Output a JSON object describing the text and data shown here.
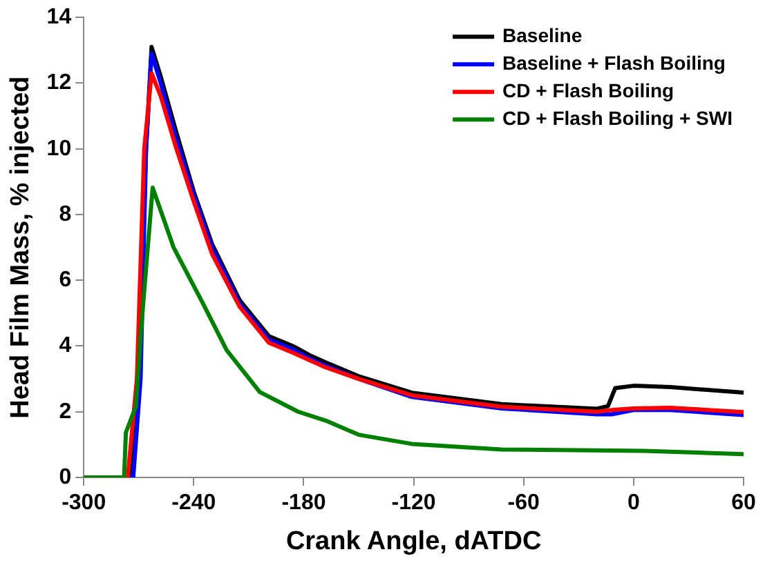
{
  "chart_data": {
    "type": "line",
    "xlabel": "Crank Angle, dATDC",
    "ylabel": "Head Film Mass, % injected",
    "xlim": [
      -300,
      60
    ],
    "xticks": [
      -300,
      -240,
      -180,
      -120,
      -60,
      0,
      60
    ],
    "ylim": [
      0,
      14
    ],
    "yticks": [
      0,
      2,
      4,
      6,
      8,
      10,
      12,
      14
    ],
    "grid": false,
    "legend": "top right",
    "marker": "none",
    "line_style": "solid",
    "series": [
      {
        "name": "Baseline",
        "color": "#000000",
        "x": [
          -300,
          -274,
          -270,
          -266,
          -263,
          -258,
          -250,
          -240,
          -230,
          -215,
          -199,
          -186,
          -176,
          -168,
          -150,
          -121,
          -72,
          -20,
          -14,
          -10,
          0,
          20,
          60
        ],
        "values": [
          0,
          0,
          3,
          10,
          13.1,
          12.2,
          10.6,
          8.7,
          7.1,
          5.4,
          4.3,
          4.0,
          3.7,
          3.5,
          3.08,
          2.58,
          2.23,
          2.09,
          2.17,
          2.72,
          2.79,
          2.75,
          2.58
        ]
      },
      {
        "name": "Baseline + Flash Boiling",
        "color": "#0000ff",
        "x": [
          -300,
          -273,
          -269,
          -266,
          -263,
          -258,
          -250,
          -240,
          -230,
          -215,
          -199,
          -186,
          -176,
          -168,
          -150,
          -121,
          -72,
          -20,
          -12,
          0,
          20,
          60
        ],
        "values": [
          0,
          0,
          3,
          10,
          12.9,
          12.0,
          10.4,
          8.6,
          7.0,
          5.3,
          4.2,
          3.9,
          3.6,
          3.4,
          3.0,
          2.45,
          2.1,
          1.92,
          1.92,
          2.05,
          2.05,
          1.9
        ]
      },
      {
        "name": "CD + Flash Boiling",
        "color": "#ff0000",
        "x": [
          -300,
          -276,
          -271,
          -267,
          -263,
          -258,
          -250,
          -240,
          -230,
          -215,
          -199,
          -186,
          -176,
          -168,
          -150,
          -121,
          -72,
          -20,
          -12,
          0,
          20,
          60
        ],
        "values": [
          0,
          0,
          3,
          10,
          12.3,
          11.6,
          10.1,
          8.4,
          6.8,
          5.2,
          4.1,
          3.8,
          3.55,
          3.35,
          3.0,
          2.5,
          2.15,
          2.0,
          2.05,
          2.1,
          2.12,
          1.99
        ]
      },
      {
        "name": "CD + Flash Boiling + SWI",
        "color": "#008000",
        "x": [
          -300,
          -278,
          -277,
          -271.5,
          -268,
          -262.4,
          -251,
          -235,
          -222,
          -204,
          -183,
          -168,
          -150,
          -121,
          -72,
          5.6,
          60
        ],
        "values": [
          0,
          0,
          1.37,
          2.17,
          5,
          8.82,
          7.0,
          5.3,
          3.87,
          2.6,
          2.0,
          1.73,
          1.3,
          1.02,
          0.85,
          0.81,
          0.71
        ]
      }
    ]
  }
}
